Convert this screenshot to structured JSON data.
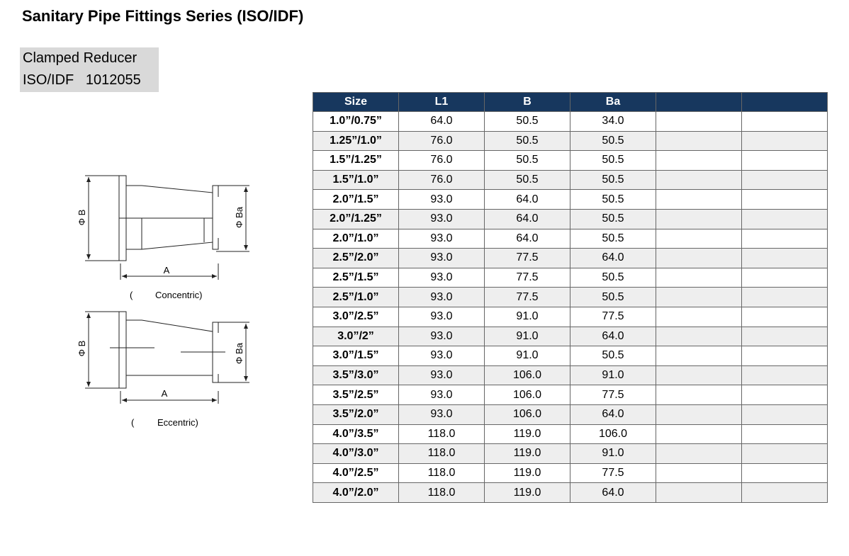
{
  "header": {
    "title": "Sanitary Pipe Fittings Series (ISO/IDF)",
    "product": "Clamped Reducer",
    "code": "ISO/IDF   1012055"
  },
  "diagrams": [
    {
      "dia_large": "Φ B",
      "dia_small": "Φ Ba",
      "length": "A",
      "paren": "(",
      "caption": "Concentric)"
    },
    {
      "dia_large": "Φ B",
      "dia_small": "Φ Ba",
      "length": "A",
      "paren": "(",
      "caption": "Eccentric)"
    }
  ],
  "table": {
    "columns": [
      "Size",
      "L1",
      "B",
      "Ba"
    ],
    "rows": [
      [
        "1.0”/0.75”",
        "64.0",
        "50.5",
        "34.0"
      ],
      [
        "1.25”/1.0”",
        "76.0",
        "50.5",
        "50.5"
      ],
      [
        "1.5”/1.25”",
        "76.0",
        "50.5",
        "50.5"
      ],
      [
        "1.5”/1.0”",
        "76.0",
        "50.5",
        "50.5"
      ],
      [
        "2.0”/1.5”",
        "93.0",
        "64.0",
        "50.5"
      ],
      [
        "2.0”/1.25”",
        "93.0",
        "64.0",
        "50.5"
      ],
      [
        "2.0”/1.0”",
        "93.0",
        "64.0",
        "50.5"
      ],
      [
        "2.5”/2.0”",
        "93.0",
        "77.5",
        "64.0"
      ],
      [
        "2.5”/1.5”",
        "93.0",
        "77.5",
        "50.5"
      ],
      [
        "2.5”/1.0”",
        "93.0",
        "77.5",
        "50.5"
      ],
      [
        "3.0”/2.5”",
        "93.0",
        "91.0",
        "77.5"
      ],
      [
        "3.0”/2”",
        "93.0",
        "91.0",
        "64.0"
      ],
      [
        "3.0”/1.5”",
        "93.0",
        "91.0",
        "50.5"
      ],
      [
        "3.5”/3.0”",
        "93.0",
        "106.0",
        "91.0"
      ],
      [
        "3.5”/2.5”",
        "93.0",
        "106.0",
        "77.5"
      ],
      [
        "3.5”/2.0”",
        "93.0",
        "106.0",
        "64.0"
      ],
      [
        "4.0”/3.5”",
        "118.0",
        "119.0",
        "106.0"
      ],
      [
        "4.0”/3.0”",
        "118.0",
        "119.0",
        "91.0"
      ],
      [
        "4.0”/2.5”",
        "118.0",
        "119.0",
        "77.5"
      ],
      [
        "4.0”/2.0”",
        "118.0",
        "119.0",
        "64.0"
      ]
    ]
  }
}
